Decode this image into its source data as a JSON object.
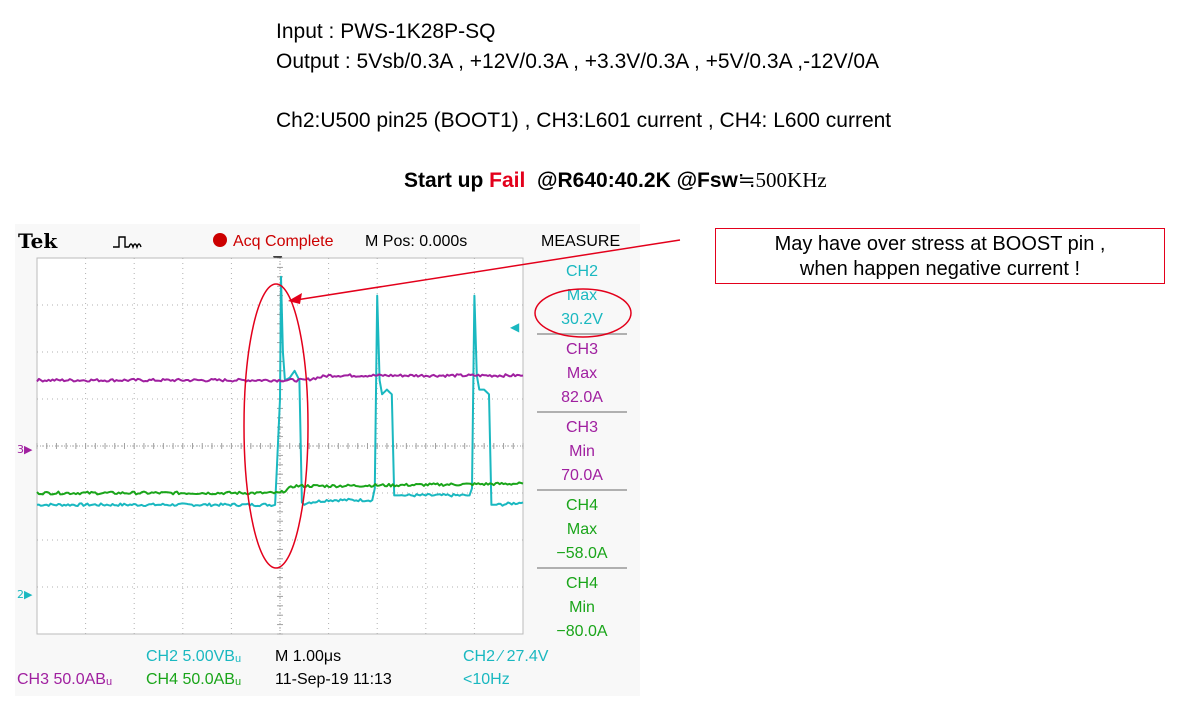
{
  "header": {
    "input_line": "Input : PWS-1K28P-SQ",
    "output_line": "Output : 5Vsb/0.3A , +12V/0.3A , +3.3V/0.3A , +5V/0.3A ,-12V/0A",
    "channel_line": "Ch2:U500 pin25 (BOOT1) , CH3:L601 current , CH4: L600 current",
    "status_prefix": "Start up ",
    "status_fail": "Fail",
    "status_suffix": "  @R640:40.2K @Fsw",
    "status_freq": "≒500KHz"
  },
  "callout": {
    "line1": "May have over stress at BOOST pin ,",
    "line2": "when happen negative current !"
  },
  "scope": {
    "brand": "Tek",
    "acq_status": "Acq Complete",
    "mpos": "M Pos: 0.000s",
    "measure_title": "MEASURE",
    "trigger_marker": "▼",
    "ch3_marker": "3▶",
    "ch2_marker": "2▶",
    "level_marker": "◀",
    "colors": {
      "ch2": "#1ab8c0",
      "ch3": "#a020a0",
      "ch4": "#1aa51a",
      "red": "#e3001b"
    },
    "measurements": [
      {
        "ch": "CH2",
        "type": "Max",
        "value": "30.2V",
        "color": "#1ab8c0"
      },
      {
        "ch": "CH3",
        "type": "Max",
        "value": "82.0A",
        "color": "#a020a0"
      },
      {
        "ch": "CH3",
        "type": "Min",
        "value": "70.0A",
        "color": "#a020a0"
      },
      {
        "ch": "CH4",
        "type": "Max",
        "value": "−58.0A",
        "color": "#1aa51a"
      },
      {
        "ch": "CH4",
        "type": "Min",
        "value": "−80.0A",
        "color": "#1aa51a"
      }
    ],
    "footer": {
      "ch2_scale": "CH2  5.00VBᵤ",
      "ch3_scale": "CH3  50.0ABᵤ",
      "ch4_scale": "CH4  50.0ABᵤ",
      "time_scale": "M 1.00μs",
      "date": "11-Sep-19 11:13",
      "trigger": "CH2 ∕ 27.4V",
      "freq": "<10Hz"
    }
  },
  "chart_data": {
    "type": "line",
    "title": "",
    "xlabel": "",
    "ylabel": "",
    "xlim": [
      -5,
      5
    ],
    "ylim": [
      -4,
      4
    ],
    "x_unit": "μs",
    "grid": true,
    "series": [
      {
        "name": "CH2",
        "color": "#1ab8c0",
        "x": [
          -5.0,
          -0.1,
          0.0,
          0.02,
          0.06,
          0.1,
          0.2,
          0.3,
          0.4,
          0.45,
          0.5,
          0.6,
          1.0,
          1.9,
          1.95,
          2.0,
          2.05,
          2.1,
          2.2,
          2.3,
          2.35,
          2.4,
          2.5,
          3.0,
          3.9,
          3.95,
          4.0,
          4.05,
          4.1,
          4.2,
          4.3,
          4.35,
          4.4,
          4.5,
          5.0
        ],
        "y": [
          -1.25,
          -1.25,
          1.0,
          3.6,
          2.0,
          1.4,
          1.45,
          1.6,
          1.4,
          -1.2,
          -1.25,
          -1.2,
          -1.15,
          -1.15,
          -0.9,
          3.2,
          1.4,
          1.1,
          1.2,
          1.1,
          -1.05,
          -1.05,
          -1.05,
          -1.05,
          -1.05,
          -0.9,
          3.2,
          1.5,
          1.2,
          1.2,
          1.1,
          -1.25,
          -1.25,
          -1.25,
          -1.2
        ]
      },
      {
        "name": "CH3",
        "color": "#a020a0",
        "x": [
          -5.0,
          0.5,
          1.0,
          5.0
        ],
        "y": [
          1.4,
          1.4,
          1.5,
          1.5
        ]
      },
      {
        "name": "CH4",
        "color": "#1aa51a",
        "x": [
          -5.0,
          0.0,
          0.3,
          1.0,
          5.0
        ],
        "y": [
          -1.0,
          -1.0,
          -0.85,
          -0.85,
          -0.8
        ]
      }
    ]
  }
}
